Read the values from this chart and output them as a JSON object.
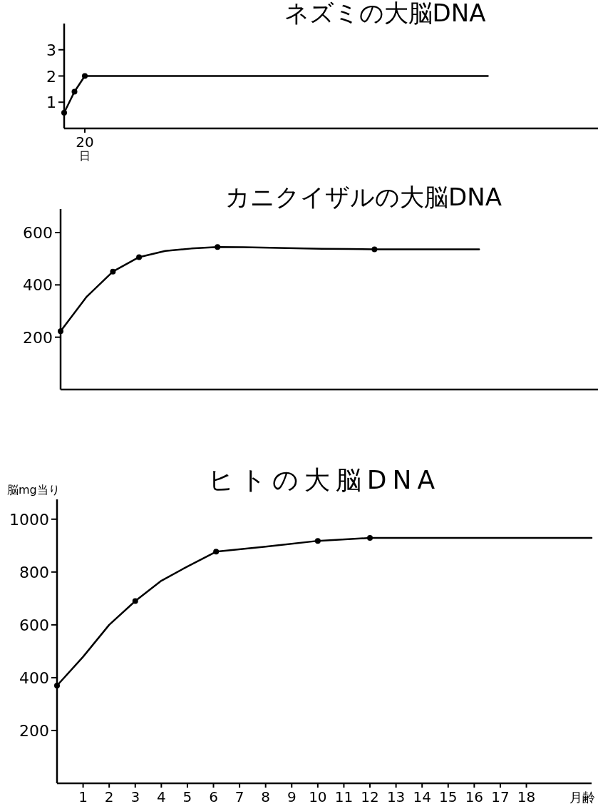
{
  "chart_data": [
    {
      "type": "line",
      "title": "ネズミの大脳DNA",
      "xlabel": "日",
      "ylim": [
        0,
        4
      ],
      "yticks": [
        1,
        2,
        3
      ],
      "categories": [
        null,
        null,
        "20",
        null,
        null,
        null,
        null,
        null,
        null,
        null,
        null,
        null,
        null,
        null,
        null,
        null,
        null,
        null,
        null,
        null,
        null,
        null,
        null,
        null,
        null,
        null,
        null,
        null,
        null,
        null,
        null,
        null,
        null,
        null,
        null,
        null,
        null,
        null,
        null,
        null,
        null,
        null,
        null,
        null,
        null,
        null,
        null,
        null,
        null,
        null,
        null,
        null
      ],
      "series": [
        {
          "color": "#000000",
          "marker": "none",
          "values": [
            0.6,
            1.4,
            2,
            2,
            2,
            2,
            2,
            2,
            2,
            2,
            2,
            2,
            2,
            2,
            2,
            2,
            2,
            2,
            2,
            2,
            2,
            2,
            2,
            2,
            2,
            2,
            2,
            2,
            2,
            2,
            2,
            2,
            2,
            2,
            2,
            2,
            2,
            2,
            2,
            2,
            2,
            2,
            null,
            null,
            null,
            null,
            null,
            null,
            null,
            null,
            null,
            null
          ]
        },
        {
          "type": "scatter",
          "color": "#000000",
          "marker": "circle",
          "values": [
            0.6,
            1.4,
            2,
            null,
            null,
            null,
            null,
            null,
            null,
            null,
            null,
            null,
            null,
            null,
            null,
            null,
            null,
            null,
            null,
            null,
            null,
            null,
            null,
            null,
            null,
            null,
            null,
            null,
            null,
            null,
            null,
            null,
            null,
            null,
            null,
            null,
            null,
            null,
            null,
            null,
            null,
            null,
            null,
            null,
            null,
            null,
            null,
            null,
            null,
            null,
            null,
            null
          ]
        }
      ]
    },
    {
      "type": "line",
      "title": "カニクイザルの大脳DNA",
      "ylim": [
        0,
        690
      ],
      "yticks": [
        200,
        400,
        600
      ],
      "categories": [
        null,
        null,
        null,
        null,
        null,
        null,
        null,
        null,
        null,
        null,
        null,
        null,
        null,
        null,
        null,
        null,
        null,
        null,
        null,
        null,
        null
      ],
      "series": [
        {
          "color": "#000000",
          "marker": "none",
          "values": [
            223,
            355,
            451,
            506,
            530,
            539,
            545,
            544,
            542,
            540,
            538,
            537,
            536,
            536,
            536,
            536,
            536,
            null,
            null,
            null,
            null
          ]
        },
        {
          "type": "scatter",
          "color": "#000000",
          "marker": "circle",
          "values": [
            223,
            null,
            451,
            506,
            null,
            null,
            545,
            null,
            null,
            null,
            null,
            null,
            536,
            null,
            null,
            null,
            null,
            null,
            null,
            null,
            null
          ]
        }
      ]
    },
    {
      "type": "line",
      "title": "ヒトの大脳DNA",
      "ylabel": "脳mg当り",
      "xlabel": "月齢",
      "xlim": [
        0,
        20.5
      ],
      "xticks": [
        1,
        2,
        3,
        4,
        5,
        6,
        7,
        8,
        9,
        10,
        11,
        12,
        13,
        14,
        15,
        16,
        17,
        18
      ],
      "ylim": [
        0,
        1075
      ],
      "yticks": [
        200,
        400,
        600,
        800,
        1000
      ],
      "series": [
        {
          "color": "#000000",
          "marker": "none",
          "x": [
            0,
            1,
            2,
            3,
            4,
            5,
            6.1,
            8,
            10,
            12,
            20.5
          ],
          "values": [
            370,
            479,
            600,
            690,
            767,
            821,
            877,
            896,
            918,
            929,
            929
          ]
        },
        {
          "type": "scatter",
          "color": "#000000",
          "marker": "circle",
          "x": [
            0,
            3,
            6.1,
            10,
            12
          ],
          "values": [
            370,
            690,
            877,
            918,
            929
          ]
        }
      ]
    }
  ]
}
